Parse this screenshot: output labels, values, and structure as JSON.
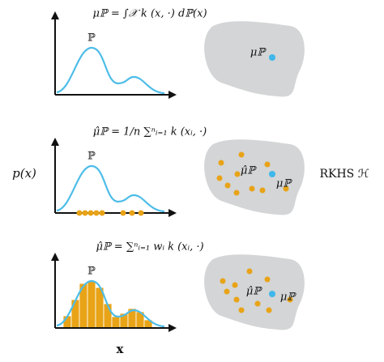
{
  "y_label": "p(x)",
  "x_label": "x",
  "rkhs_label": "RKHS ℋ",
  "panels": [
    {
      "formula": "μℙ = ∫𝒳 k (x, ·) dℙ(x)",
      "dist_label": "ℙ",
      "embedding_labels": [
        "μℙ"
      ]
    },
    {
      "formula": "μ̂ℙ = 1/n ∑ⁿᵢ₌₁ k (xᵢ, ·)",
      "dist_label": "ℙ",
      "embedding_labels": [
        "μ̂ℙ",
        "μℙ"
      ]
    },
    {
      "formula": "μ̂ℙ = ∑ⁿᵢ₌₁ wᵢ k (xᵢ, ·)",
      "dist_label": "ℙ",
      "embedding_labels": [
        "μ̂ℙ",
        "μℙ"
      ]
    }
  ]
}
